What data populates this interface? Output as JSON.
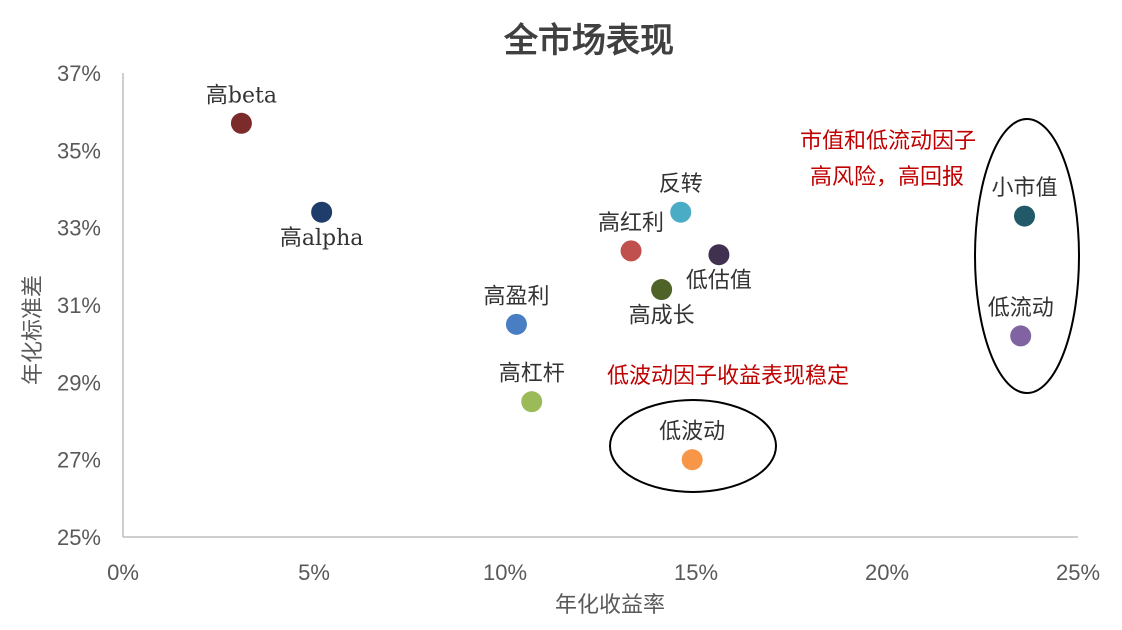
{
  "chart_data": {
    "type": "scatter",
    "title": "全市场表现",
    "xlabel": "年化收益率",
    "ylabel": "年化标准差",
    "xlim": [
      0,
      0.25
    ],
    "ylim": [
      0.25,
      0.37
    ],
    "x_ticks": [
      "0%",
      "5%",
      "10%",
      "15%",
      "20%",
      "25%"
    ],
    "y_ticks": [
      "25%",
      "27%",
      "29%",
      "31%",
      "33%",
      "35%",
      "37%"
    ],
    "grid": false,
    "legend": "none",
    "points": [
      {
        "label": "高beta",
        "x": 0.031,
        "y": 0.357,
        "color": "#7b2c2a",
        "label_pos": "above"
      },
      {
        "label": "高alpha",
        "x": 0.052,
        "y": 0.334,
        "color": "#1f3d6b",
        "label_pos": "below"
      },
      {
        "label": "高盈利",
        "x": 0.103,
        "y": 0.305,
        "color": "#4a7ec2",
        "label_pos": "above"
      },
      {
        "label": "高杠杆",
        "x": 0.107,
        "y": 0.285,
        "color": "#9bbb59",
        "label_pos": "above"
      },
      {
        "label": "高红利",
        "x": 0.133,
        "y": 0.324,
        "color": "#c0504d",
        "label_pos": "above"
      },
      {
        "label": "高成长",
        "x": 0.141,
        "y": 0.314,
        "color": "#4f6228",
        "label_pos": "below"
      },
      {
        "label": "反转",
        "x": 0.146,
        "y": 0.334,
        "color": "#4bacc6",
        "label_pos": "above"
      },
      {
        "label": "低估值",
        "x": 0.156,
        "y": 0.323,
        "color": "#403151",
        "label_pos": "below"
      },
      {
        "label": "低波动",
        "x": 0.149,
        "y": 0.27,
        "color": "#f79646",
        "label_pos": "above"
      },
      {
        "label": "小市值",
        "x": 0.236,
        "y": 0.333,
        "color": "#215968",
        "label_pos": "above"
      },
      {
        "label": "低流动",
        "x": 0.235,
        "y": 0.302,
        "color": "#8064a2",
        "label_pos": "above"
      }
    ],
    "annotations": [
      {
        "text": "市值和低流动因子",
        "color": "#c00000"
      },
      {
        "text": "高风险，高回报",
        "color": "#c00000"
      },
      {
        "text": "低波动因子收益表现稳定",
        "color": "#c00000"
      }
    ]
  }
}
